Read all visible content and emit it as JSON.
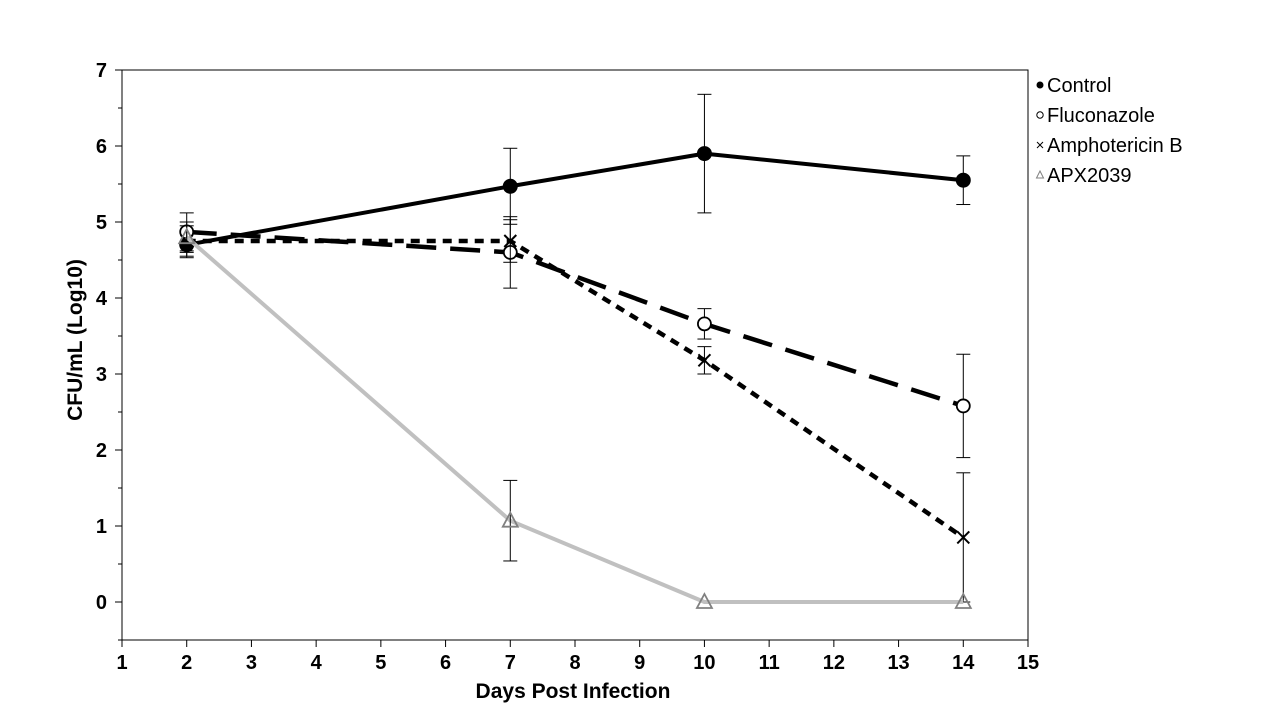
{
  "chart_data": {
    "type": "line",
    "xlabel": "Days Post Infection",
    "ylabel": "CFU/mL (Log10)",
    "xlim": [
      1,
      15
    ],
    "ylim": [
      -0.5,
      7
    ],
    "xticks": [
      1,
      2,
      3,
      4,
      5,
      6,
      7,
      8,
      9,
      10,
      11,
      12,
      13,
      14,
      15
    ],
    "yticks": [
      0,
      1,
      2,
      3,
      4,
      5,
      6,
      7
    ],
    "legend_position": "top-right, outside plot",
    "grid": false,
    "series": [
      {
        "name": "Control",
        "marker": "filled-circle",
        "line": "solid",
        "color": "#000000",
        "x": [
          2,
          7,
          10,
          14
        ],
        "y": [
          4.7,
          5.47,
          5.9,
          5.55
        ],
        "err": [
          0.17,
          0.5,
          0.78,
          0.32
        ]
      },
      {
        "name": "Fluconazole",
        "marker": "open-circle",
        "line": "dashed",
        "color": "#000000",
        "x": [
          2,
          7,
          10,
          14
        ],
        "y": [
          4.87,
          4.6,
          3.66,
          2.58
        ],
        "err": [
          0.25,
          0.47,
          0.2,
          0.68
        ]
      },
      {
        "name": "Amphotericin B",
        "marker": "x",
        "line": "dotted",
        "color": "#000000",
        "x": [
          2,
          7,
          10,
          14
        ],
        "y": [
          4.75,
          4.75,
          3.18,
          0.85
        ],
        "err": [
          0.2,
          0.28,
          0.18,
          0.85
        ]
      },
      {
        "name": "APX2039",
        "marker": "open-triangle",
        "line": "solid",
        "color": "#c0c0c0",
        "x": [
          2,
          7,
          10,
          14
        ],
        "y": [
          4.8,
          1.07,
          0.0,
          0.0
        ],
        "err": [
          0.2,
          0.53,
          0.0,
          0.0
        ]
      }
    ]
  }
}
